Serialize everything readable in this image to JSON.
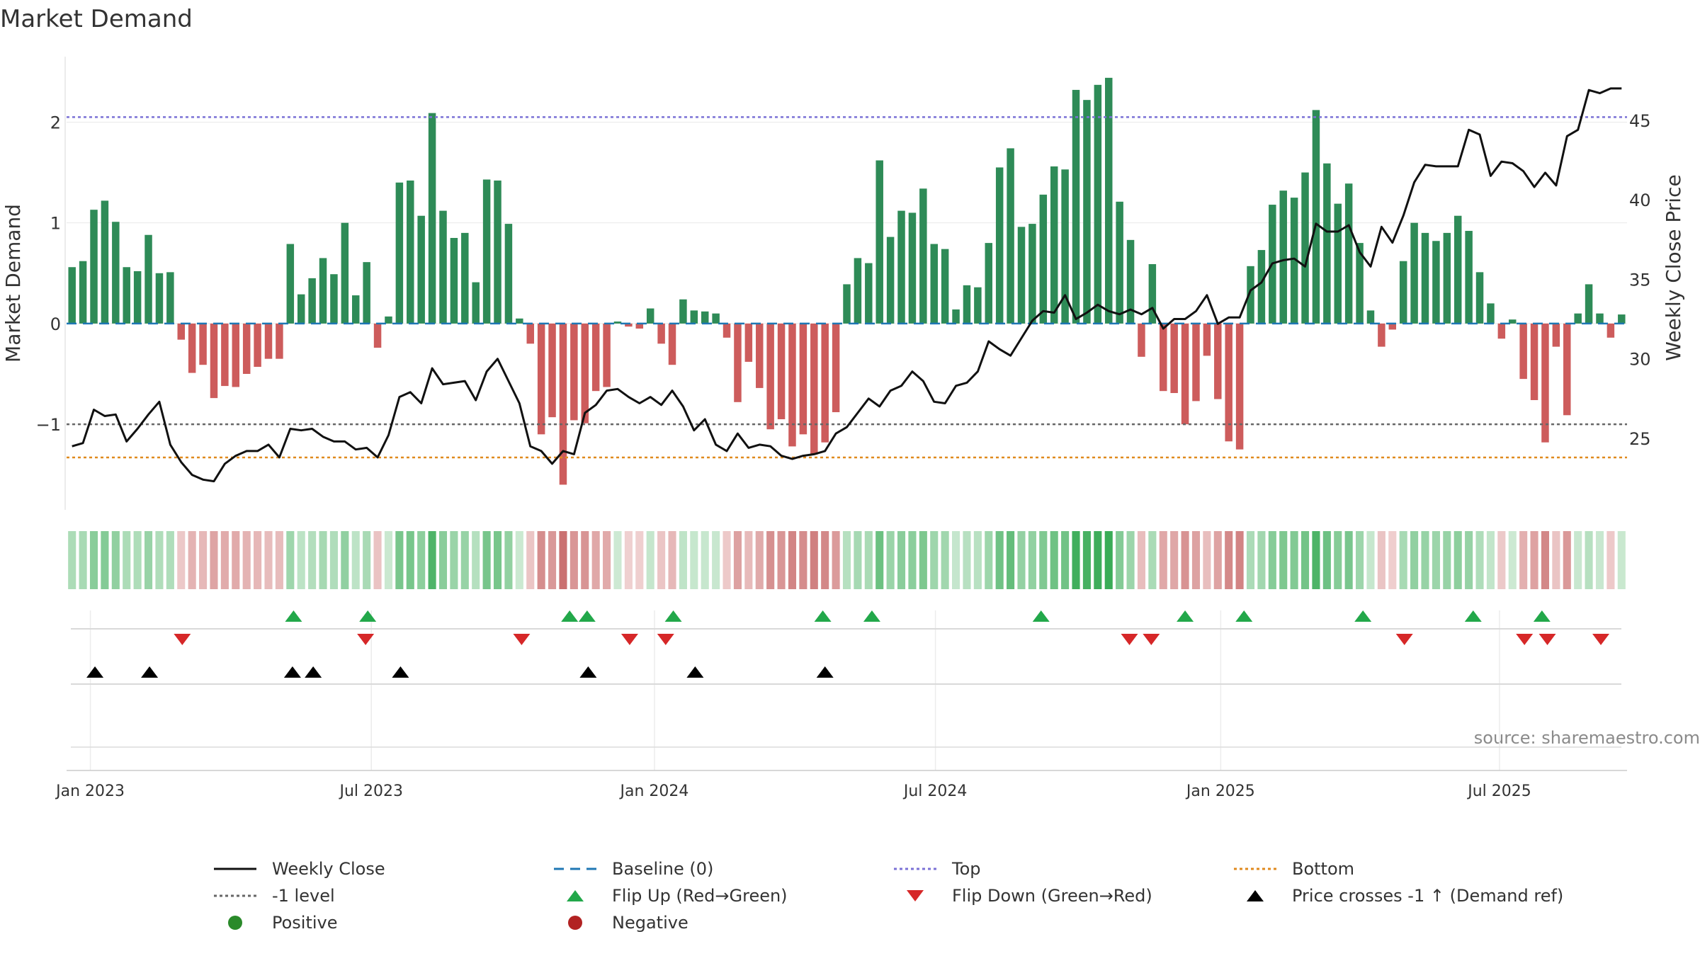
{
  "source": "source: sharemaestro.com",
  "legend": [
    {
      "id": "weekly-close",
      "label": "Weekly Close",
      "symbol": "solid-line",
      "color": "#111111"
    },
    {
      "id": "baseline",
      "label": "Baseline (0)",
      "symbol": "dashed-line",
      "color": "#1f77b4"
    },
    {
      "id": "top",
      "label": "Top",
      "symbol": "dotted-line",
      "color": "#7b72d6"
    },
    {
      "id": "bottom",
      "label": "Bottom",
      "symbol": "dotted-line",
      "color": "#e08a1e"
    },
    {
      "id": "minus-one",
      "label": "-1 level",
      "symbol": "dotted-line",
      "color": "#666666"
    },
    {
      "id": "flip-up",
      "label": "Flip Up (Red→Green)",
      "symbol": "triangle-up",
      "color": "#22a84a"
    },
    {
      "id": "flip-down",
      "label": "Flip Down (Green→Red)",
      "symbol": "triangle-down",
      "color": "#d62728"
    },
    {
      "id": "price-cross",
      "label": "Price crosses -1 ↑ (Demand ref)",
      "symbol": "triangle-up",
      "color": "#000000"
    },
    {
      "id": "positive",
      "label": "Positive",
      "symbol": "circle",
      "color": "#2a8a2a"
    },
    {
      "id": "negative",
      "label": "Negative",
      "symbol": "circle",
      "color": "#b22222"
    }
  ],
  "chart_data": {
    "type": "bar",
    "title": "Market Demand",
    "ylabel": "Market Demand",
    "y2label": "Weekly Close Price",
    "ylim": [
      -1.85,
      2.65
    ],
    "y2lim": [
      20.5,
      49
    ],
    "yticks": [
      -1,
      0,
      1,
      2
    ],
    "ytick_labels": [
      "−1",
      "0",
      "1",
      "2"
    ],
    "y2ticks": [
      25,
      30,
      35,
      40,
      45
    ],
    "xdomain": [
      -1.1,
      71.1
    ],
    "xticks": [
      {
        "pos": 0,
        "label": "Jan 2023"
      },
      {
        "pos": 13,
        "label": "Jul 2023"
      },
      {
        "pos": 26.1,
        "label": "Jan 2024"
      },
      {
        "pos": 39.1,
        "label": "Jul 2024"
      },
      {
        "pos": 52.3,
        "label": "Jan 2025"
      },
      {
        "pos": 65.2,
        "label": "Jul 2025"
      }
    ],
    "top_level": 2.05,
    "bottom_level": -1.33,
    "ref_level": -1,
    "baseline": 0,
    "series": [
      {
        "name": "Market Demand",
        "values": [
          0.56,
          0.62,
          1.13,
          1.22,
          1.01,
          0.56,
          0.52,
          0.88,
          0.5,
          0.51,
          -0.16,
          -0.49,
          -0.41,
          -0.74,
          -0.62,
          -0.63,
          -0.5,
          -0.43,
          -0.35,
          -0.35,
          0.79,
          0.29,
          0.45,
          0.65,
          0.49,
          1.0,
          0.28,
          0.61,
          -0.24,
          0.07,
          1.4,
          1.42,
          1.07,
          2.09,
          1.12,
          0.85,
          0.9,
          0.41,
          1.43,
          1.42,
          0.99,
          0.05,
          -0.2,
          -1.1,
          -0.93,
          -1.6,
          -0.96,
          -0.99,
          -0.67,
          -0.63,
          0.02,
          -0.03,
          -0.05,
          0.15,
          -0.2,
          -0.41,
          0.24,
          0.13,
          0.12,
          0.1,
          -0.14,
          -0.78,
          -0.38,
          -0.64,
          -1.05,
          -0.95,
          -1.22,
          -1.1,
          -1.3,
          -1.18,
          -0.88,
          0.39,
          0.65,
          0.6,
          1.62,
          0.86,
          1.12,
          1.1,
          1.34,
          0.79,
          0.74,
          0.14,
          0.38,
          0.36,
          0.8,
          1.55,
          1.74,
          0.96,
          0.99,
          1.28,
          1.56,
          1.53,
          2.32,
          2.22,
          2.37,
          2.44,
          1.21,
          0.83,
          -0.33,
          0.59,
          -0.67,
          -0.69,
          -1.0,
          -0.77,
          -0.32,
          -0.75,
          -1.17,
          -1.25,
          0.57,
          0.73,
          1.18,
          1.32,
          1.25,
          1.5,
          2.12,
          1.59,
          1.19,
          1.39,
          0.8,
          0.13,
          -0.23,
          -0.06,
          0.62,
          1.0,
          0.9,
          0.82,
          0.9,
          1.07,
          0.92,
          0.51,
          0.2,
          -0.15,
          0.04,
          -0.55,
          -0.76,
          -1.18,
          -0.23,
          -0.91,
          0.1,
          0.39,
          0.1,
          -0.14,
          0.09
        ]
      },
      {
        "name": "Weekly Close",
        "values": [
          24.5,
          24.7,
          26.8,
          26.4,
          26.5,
          24.8,
          25.6,
          26.5,
          27.3,
          24.6,
          23.5,
          22.7,
          22.4,
          22.3,
          23.4,
          23.9,
          24.2,
          24.2,
          24.6,
          23.8,
          25.6,
          25.5,
          25.6,
          25.1,
          24.8,
          24.8,
          24.3,
          24.4,
          23.8,
          25.2,
          27.6,
          27.9,
          27.2,
          29.4,
          28.4,
          28.5,
          28.6,
          27.4,
          29.2,
          30.0,
          28.6,
          27.2,
          24.5,
          24.2,
          23.4,
          24.2,
          24.0,
          26.6,
          27.1,
          28.0,
          28.1,
          27.6,
          27.2,
          27.6,
          27.1,
          28.0,
          27.0,
          25.5,
          26.2,
          24.6,
          24.2,
          25.3,
          24.4,
          24.6,
          24.5,
          23.9,
          23.7,
          23.9,
          24.0,
          24.2,
          25.3,
          25.7,
          26.6,
          27.5,
          27.0,
          28.0,
          28.3,
          29.2,
          28.6,
          27.3,
          27.2,
          28.3,
          28.5,
          29.2,
          31.1,
          30.6,
          30.2,
          31.3,
          32.4,
          33.0,
          32.9,
          34.0,
          32.5,
          32.9,
          33.4,
          33.0,
          32.8,
          33.1,
          32.8,
          33.2,
          31.9,
          32.5,
          32.5,
          33.0,
          34.0,
          32.2,
          32.6,
          32.6,
          34.3,
          34.8,
          36.0,
          36.2,
          36.3,
          35.8,
          38.5,
          38.0,
          38.0,
          38.4,
          36.7,
          35.8,
          38.3,
          37.3,
          39.0,
          41.1,
          42.2,
          42.1,
          42.1,
          42.1,
          44.4,
          44.1,
          41.5,
          42.4,
          42.3,
          41.8,
          40.8,
          41.7,
          40.9,
          44.0,
          44.4,
          46.9,
          46.7,
          47.0,
          47.0
        ]
      }
    ],
    "signals": {
      "flip_up": [
        20.3,
        27.1,
        45.6,
        47.2,
        55.1,
        68.8,
        73.3,
        88.8,
        102.0,
        107.4,
        118.3,
        128.4,
        134.7
      ],
      "flip_down": [
        10.1,
        26.9,
        41.2,
        51.1,
        54.4,
        96.9,
        98.9,
        122.1,
        133.1,
        135.2,
        140.1
      ],
      "price_cross": [
        2.1,
        7.1,
        20.2,
        22.1,
        30.1,
        47.3,
        57.1,
        69.0
      ]
    }
  }
}
